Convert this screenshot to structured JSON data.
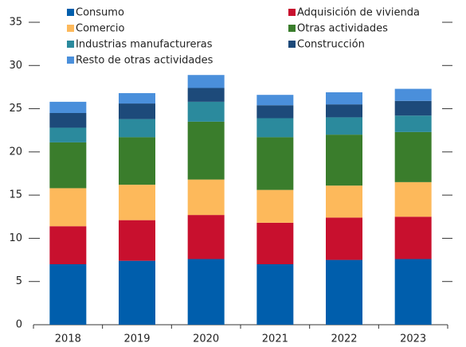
{
  "chart_data": {
    "type": "stacked_bar",
    "categories": [
      "2018",
      "2019",
      "2020",
      "2021",
      "2022",
      "2023"
    ],
    "series": [
      {
        "name": "Consumo",
        "color": "#005eac",
        "values": [
          7.0,
          7.4,
          7.6,
          7.0,
          7.5,
          7.6
        ]
      },
      {
        "name": "Adquisición de vivienda",
        "color": "#c8102e",
        "values": [
          4.4,
          4.7,
          5.1,
          4.8,
          4.9,
          4.9
        ]
      },
      {
        "name": "Comercio",
        "color": "#fdb95b",
        "values": [
          4.4,
          4.1,
          4.1,
          3.8,
          3.7,
          4.0
        ]
      },
      {
        "name": "Otras actividades",
        "color": "#3a7d2c",
        "values": [
          5.3,
          5.5,
          6.7,
          6.1,
          5.9,
          5.8
        ]
      },
      {
        "name": "Industrias manufactureras",
        "color": "#2b8a9d",
        "values": [
          1.7,
          2.1,
          2.3,
          2.2,
          2.0,
          1.9
        ]
      },
      {
        "name": "Construcción",
        "color": "#1d4a7a",
        "values": [
          1.7,
          1.8,
          1.6,
          1.5,
          1.5,
          1.7
        ]
      },
      {
        "name": "Resto de otras actividades",
        "color": "#4a8fdb",
        "values": [
          1.3,
          1.2,
          1.5,
          1.2,
          1.4,
          1.4
        ]
      }
    ],
    "ylim": [
      0,
      35
    ],
    "yticks": [
      0,
      5,
      10,
      15,
      20,
      25,
      30,
      35
    ]
  }
}
